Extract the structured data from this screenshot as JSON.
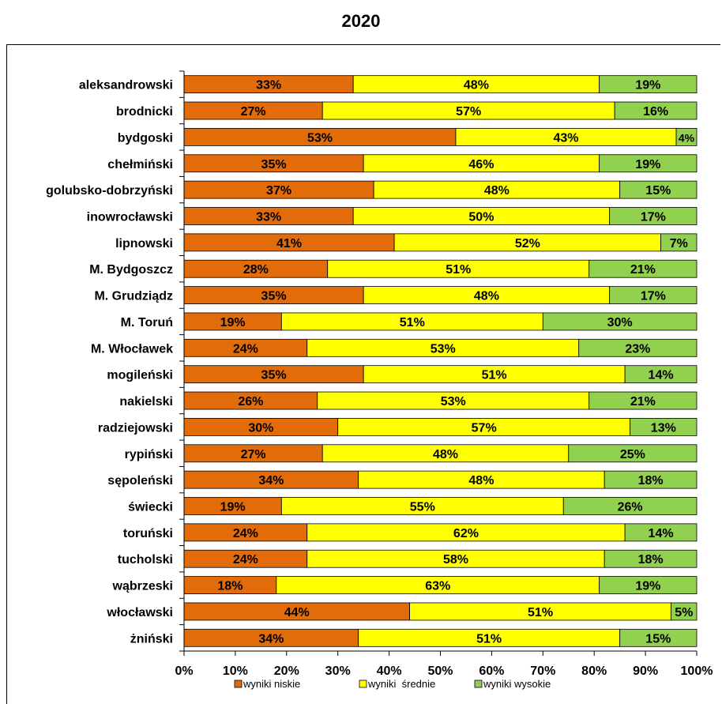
{
  "chart_data": {
    "type": "bar",
    "orientation": "horizontal",
    "stacked": true,
    "title": "2020",
    "categories": [
      "aleksandrowski",
      "brodnicki",
      "bydgoski",
      "chełmiński",
      "golubsko-dobrzyński",
      "inowrocławski",
      "lipnowski",
      "M. Bydgoszcz",
      "M. Grudziądz",
      "M. Toruń",
      "M. Włocławek",
      "mogileński",
      "nakielski",
      "radziejowski",
      "rypiński",
      "sępoleński",
      "świecki",
      "toruński",
      "tucholski",
      "wąbrzeski",
      "włocławski",
      "żniński"
    ],
    "series": [
      {
        "name": "wyniki niskie",
        "color": "#e26b0a",
        "values": [
          33,
          27,
          53,
          35,
          37,
          33,
          41,
          28,
          35,
          19,
          24,
          35,
          26,
          30,
          27,
          34,
          19,
          24,
          24,
          18,
          44,
          34
        ],
        "labels": [
          "33%",
          "27%",
          "53%",
          "35%",
          "37%",
          "33%",
          "41%",
          "28%",
          "35%",
          "19%",
          "24%",
          "35%",
          "26%",
          "30%",
          "27%",
          "34%",
          "19%",
          "24%",
          "24%",
          "18%",
          "44%",
          "34%"
        ]
      },
      {
        "name": "wyniki  średnie",
        "color": "#ffff00",
        "values": [
          48,
          57,
          43,
          46,
          48,
          50,
          52,
          51,
          48,
          51,
          53,
          51,
          53,
          57,
          48,
          48,
          55,
          62,
          58,
          63,
          51,
          51
        ],
        "labels": [
          "48%",
          "57%",
          "43%",
          "46%",
          "48%",
          "50%",
          "52%",
          "51%",
          "48%",
          "51%",
          "53%",
          "51%",
          "53%",
          "57%",
          "48%",
          "48%",
          "55%",
          "62%",
          "58%",
          "63%",
          "51%",
          "51%"
        ]
      },
      {
        "name": "wyniki wysokie",
        "color": "#92d050",
        "values": [
          19,
          16,
          4,
          19,
          15,
          17,
          7,
          21,
          17,
          30,
          23,
          14,
          21,
          13,
          25,
          18,
          26,
          14,
          18,
          19,
          5,
          15
        ],
        "labels": [
          "19%",
          "16%",
          "4%",
          "19%",
          "15%",
          "17%",
          "7%",
          "21%",
          "17%",
          "30%",
          "23%",
          "14%",
          "21%",
          "13%",
          "25%",
          "18%",
          "26%",
          "14%",
          "18%",
          "19%",
          "5%",
          "15%"
        ]
      }
    ],
    "x_ticks": [
      "0%",
      "10%",
      "20%",
      "30%",
      "40%",
      "50%",
      "60%",
      "70%",
      "80%",
      "90%",
      "100%"
    ],
    "xlim": [
      0,
      100
    ],
    "grid": false,
    "legend_position": "bottom"
  }
}
